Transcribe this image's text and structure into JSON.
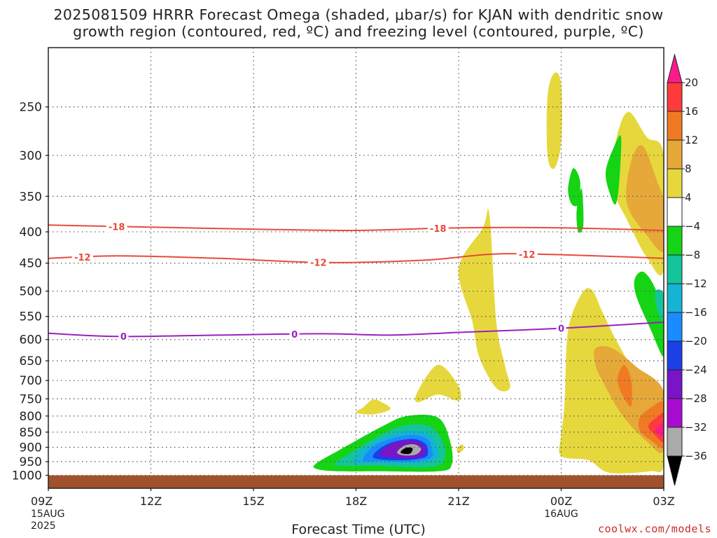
{
  "title": {
    "line1": "2025081509 HRRR Forecast Omega (shaded, μbar/s) for KJAN with dendritic snow",
    "line2": "growth region (contoured, red, ºC) and freezing level (contoured, purple, ºC)"
  },
  "credit": "coolwx.com/models",
  "chart_data": {
    "type": "heatmap",
    "xlabel": "Forecast Time (UTC)",
    "ylabel": "",
    "x_ticks": [
      {
        "label": "09Z",
        "sub1": "15AUG",
        "sub2": "2025",
        "hour": 0
      },
      {
        "label": "12Z",
        "sub1": "",
        "sub2": "",
        "hour": 3
      },
      {
        "label": "15Z",
        "sub1": "",
        "sub2": "",
        "hour": 6
      },
      {
        "label": "18Z",
        "sub1": "",
        "sub2": "",
        "hour": 9
      },
      {
        "label": "21Z",
        "sub1": "",
        "sub2": "",
        "hour": 12
      },
      {
        "label": "00Z",
        "sub1": "16AUG",
        "sub2": "",
        "hour": 15
      },
      {
        "label": "03Z",
        "sub1": "",
        "sub2": "",
        "hour": 18
      }
    ],
    "xlim": [
      0,
      18
    ],
    "y_ticks": [
      250,
      300,
      350,
      400,
      450,
      500,
      550,
      600,
      650,
      700,
      750,
      800,
      850,
      900,
      950,
      1000
    ],
    "ylim": [
      1050,
      200
    ],
    "y_scale": "log",
    "grid": true,
    "colorbar": {
      "labels": [
        "20",
        "16",
        "12",
        "8",
        "4",
        "−4",
        "−8",
        "−12",
        "−16",
        "−20",
        "−24",
        "−28",
        "−32",
        "−36"
      ],
      "colors": [
        "#ff1a8c",
        "#ff3a3a",
        "#f07a24",
        "#e6a838",
        "#e6d83c",
        "#ffffff",
        "#14d414",
        "#14c49a",
        "#14b4d4",
        "#1a8cff",
        "#1a40e6",
        "#7a14c8",
        "#a80cd0",
        "#aaaaaa",
        "#000000"
      ]
    },
    "contours": [
      {
        "value": -18,
        "label": "-18",
        "color": "#e84a3c",
        "points": [
          [
            0,
            390
          ],
          [
            3,
            393
          ],
          [
            6,
            396
          ],
          [
            9,
            398
          ],
          [
            12,
            394
          ],
          [
            15,
            394
          ],
          [
            18,
            398
          ]
        ],
        "label_hours": [
          2.0,
          11.4
        ]
      },
      {
        "value": -12,
        "label": "-12",
        "color": "#e84a3c",
        "points": [
          [
            0,
            442
          ],
          [
            2,
            438
          ],
          [
            5,
            442
          ],
          [
            8,
            449
          ],
          [
            11,
            445
          ],
          [
            13,
            435
          ],
          [
            15,
            436
          ],
          [
            18,
            442
          ]
        ],
        "label_hours": [
          1.0,
          7.9,
          14.0
        ]
      },
      {
        "value": 0,
        "label": "0",
        "color": "#9a20c0",
        "points": [
          [
            0,
            586
          ],
          [
            2,
            593
          ],
          [
            5,
            590
          ],
          [
            8,
            587
          ],
          [
            10,
            590
          ],
          [
            12,
            584
          ],
          [
            15,
            575
          ],
          [
            18,
            562
          ]
        ],
        "label_hours": [
          2.2,
          7.2,
          15.0
        ]
      }
    ],
    "terrain": {
      "color": "#a0522d",
      "from_pressure": 1013
    },
    "omega_regions": [
      {
        "value": 4,
        "color": "#e6d83c",
        "points": [
          [
            9.0,
            790
          ],
          [
            9.2,
            775
          ],
          [
            9.5,
            752
          ],
          [
            9.8,
            762
          ],
          [
            10.0,
            780
          ],
          [
            9.5,
            795
          ]
        ]
      },
      {
        "value": 4,
        "color": "#e6d83c",
        "points": [
          [
            10.8,
            730
          ],
          [
            11.4,
            660
          ],
          [
            12.0,
            715
          ],
          [
            12.0,
            755
          ],
          [
            11.4,
            738
          ],
          [
            10.8,
            760
          ]
        ]
      },
      {
        "value": 4,
        "color": "#e6d83c",
        "points": [
          [
            12.0,
            920
          ],
          [
            12.15,
            905
          ],
          [
            12.1,
            890
          ],
          [
            11.95,
            905
          ]
        ]
      },
      {
        "value": 4,
        "color": "#e6d83c",
        "points": [
          [
            12.0,
            460
          ],
          [
            12.7,
            395
          ],
          [
            12.9,
            375
          ],
          [
            13.1,
            560
          ],
          [
            13.35,
            660
          ],
          [
            13.5,
            720
          ],
          [
            13.1,
            720
          ],
          [
            12.6,
            640
          ],
          [
            12.4,
            560
          ]
        ]
      },
      {
        "value": 4,
        "color": "#e6d83c",
        "points": [
          [
            14.6,
            240
          ],
          [
            14.8,
            220
          ],
          [
            15.0,
            230
          ],
          [
            15.0,
            285
          ],
          [
            14.8,
            315
          ],
          [
            14.6,
            300
          ]
        ]
      },
      {
        "value": 4,
        "color": "#e6d83c",
        "points": [
          [
            15.0,
            860
          ],
          [
            15.1,
            760
          ],
          [
            15.2,
            580
          ],
          [
            15.6,
            505
          ],
          [
            15.9,
            498
          ],
          [
            16.2,
            540
          ],
          [
            16.6,
            600
          ],
          [
            17.2,
            680
          ],
          [
            18,
            740
          ],
          [
            18,
            960
          ],
          [
            17.6,
            985
          ],
          [
            16.4,
            990
          ],
          [
            15.8,
            945
          ],
          [
            15.0,
            930
          ]
        ]
      },
      {
        "value": 4,
        "color": "#e6d83c",
        "points": [
          [
            16.5,
            310
          ],
          [
            16.7,
            270
          ],
          [
            17.0,
            255
          ],
          [
            17.5,
            280
          ],
          [
            18,
            300
          ],
          [
            18,
            460
          ],
          [
            17.5,
            440
          ],
          [
            16.9,
            380
          ],
          [
            16.6,
            350
          ]
        ]
      },
      {
        "value": 8,
        "color": "#e6a838",
        "points": [
          [
            16.9,
            340
          ],
          [
            17.1,
            300
          ],
          [
            17.4,
            290
          ],
          [
            17.8,
            330
          ],
          [
            18,
            360
          ],
          [
            18,
            430
          ],
          [
            17.5,
            405
          ],
          [
            17.0,
            370
          ]
        ]
      },
      {
        "value": 8,
        "color": "#e6a838",
        "points": [
          [
            16.0,
            660
          ],
          [
            16.0,
            620
          ],
          [
            16.5,
            620
          ],
          [
            17.2,
            665
          ],
          [
            18,
            730
          ],
          [
            18,
            910
          ],
          [
            17.5,
            880
          ],
          [
            16.8,
            800
          ],
          [
            16.2,
            700
          ]
        ]
      },
      {
        "value": 12,
        "color": "#f07a24",
        "points": [
          [
            16.65,
            690
          ],
          [
            16.85,
            660
          ],
          [
            17.05,
            700
          ],
          [
            17.05,
            770
          ],
          [
            16.85,
            750
          ],
          [
            16.7,
            720
          ]
        ]
      },
      {
        "value": 12,
        "color": "#f07a24",
        "points": [
          [
            17.3,
            805
          ],
          [
            17.7,
            770
          ],
          [
            18,
            765
          ],
          [
            18,
            895
          ],
          [
            17.6,
            875
          ],
          [
            17.3,
            845
          ]
        ]
      },
      {
        "value": 16,
        "color": "#ff3a3a",
        "points": [
          [
            17.55,
            830
          ],
          [
            17.85,
            800
          ],
          [
            18,
            795
          ],
          [
            18,
            880
          ],
          [
            17.75,
            860
          ]
        ]
      },
      {
        "value": 20,
        "color": "#ff1a8c",
        "points": [
          [
            17.75,
            845
          ],
          [
            17.95,
            820
          ],
          [
            18,
            818
          ],
          [
            18,
            860
          ],
          [
            17.85,
            858
          ]
        ]
      },
      {
        "value": -4,
        "color": "#ffffff",
        "points": [
          [
            17.55,
            555
          ],
          [
            17.8,
            510
          ],
          [
            18,
            500
          ],
          [
            18,
            640
          ],
          [
            17.75,
            600
          ]
        ]
      },
      {
        "value": -8,
        "color": "#14d414",
        "points": [
          [
            16.3,
            320
          ],
          [
            16.55,
            290
          ],
          [
            16.75,
            280
          ],
          [
            16.7,
            330
          ],
          [
            16.6,
            360
          ],
          [
            16.45,
            350
          ]
        ]
      },
      {
        "value": -8,
        "color": "#14d414",
        "points": [
          [
            15.45,
            370
          ],
          [
            15.6,
            340
          ],
          [
            15.65,
            390
          ],
          [
            15.5,
            400
          ]
        ]
      },
      {
        "value": -8,
        "color": "#14d414",
        "points": [
          [
            15.2,
            340
          ],
          [
            15.35,
            315
          ],
          [
            15.55,
            330
          ],
          [
            15.5,
            360
          ],
          [
            15.3,
            360
          ]
        ]
      },
      {
        "value": -8,
        "color": "#14d414",
        "points": [
          [
            17.15,
            478
          ],
          [
            17.4,
            465
          ],
          [
            17.75,
            495
          ],
          [
            18,
            560
          ],
          [
            18,
            640
          ],
          [
            17.6,
            575
          ],
          [
            17.2,
            510
          ]
        ]
      },
      {
        "value": -12,
        "color": "#14c49a",
        "points": [
          [
            17.75,
            500
          ],
          [
            18,
            505
          ],
          [
            18,
            560
          ],
          [
            17.8,
            535
          ]
        ]
      },
      {
        "value": -8,
        "color": "#14d414",
        "points": [
          [
            7.8,
            960
          ],
          [
            8.5,
            910
          ],
          [
            9.8,
            830
          ],
          [
            10.5,
            800
          ],
          [
            11.4,
            805
          ],
          [
            11.75,
            880
          ],
          [
            11.8,
            960
          ],
          [
            11.4,
            985
          ],
          [
            9.6,
            985
          ],
          [
            8.5,
            985
          ],
          [
            7.9,
            978
          ]
        ]
      },
      {
        "value": -12,
        "color": "#14c49a",
        "points": [
          [
            8.4,
            955
          ],
          [
            9.1,
            900
          ],
          [
            10.2,
            835
          ],
          [
            11.1,
            830
          ],
          [
            11.55,
            885
          ],
          [
            11.55,
            950
          ],
          [
            11.0,
            970
          ],
          [
            9.6,
            965
          ],
          [
            8.6,
            965
          ]
        ]
      },
      {
        "value": -16,
        "color": "#14b4d4",
        "points": [
          [
            8.9,
            950
          ],
          [
            9.4,
            890
          ],
          [
            10.3,
            850
          ],
          [
            11.0,
            850
          ],
          [
            11.35,
            890
          ],
          [
            11.35,
            940
          ],
          [
            10.8,
            955
          ],
          [
            9.6,
            955
          ]
        ]
      },
      {
        "value": -20,
        "color": "#1a8cff",
        "points": [
          [
            9.2,
            945
          ],
          [
            9.6,
            890
          ],
          [
            10.5,
            860
          ],
          [
            11.05,
            870
          ],
          [
            11.2,
            900
          ],
          [
            11.2,
            935
          ],
          [
            10.6,
            950
          ],
          [
            9.7,
            948
          ]
        ]
      },
      {
        "value": -24,
        "color": "#1a40e6",
        "points": [
          [
            9.5,
            935
          ],
          [
            9.9,
            890
          ],
          [
            10.6,
            872
          ],
          [
            11.0,
            885
          ],
          [
            11.1,
            910
          ],
          [
            11.0,
            935
          ],
          [
            10.3,
            945
          ]
        ]
      },
      {
        "value": -28,
        "color": "#7a14c8",
        "points": [
          [
            9.7,
            925
          ],
          [
            10.1,
            885
          ],
          [
            10.7,
            878
          ],
          [
            11.0,
            900
          ],
          [
            10.95,
            930
          ],
          [
            10.4,
            938
          ]
        ]
      },
      {
        "value": -32,
        "color": "#aaaaaa",
        "points": [
          [
            10.2,
            918
          ],
          [
            10.4,
            895
          ],
          [
            10.7,
            890
          ],
          [
            10.9,
            905
          ],
          [
            10.75,
            925
          ],
          [
            10.4,
            928
          ]
        ]
      },
      {
        "value": -36,
        "color": "#000000",
        "points": [
          [
            10.3,
            917
          ],
          [
            10.45,
            902
          ],
          [
            10.65,
            903
          ],
          [
            10.6,
            920
          ],
          [
            10.45,
            923
          ]
        ]
      }
    ]
  }
}
